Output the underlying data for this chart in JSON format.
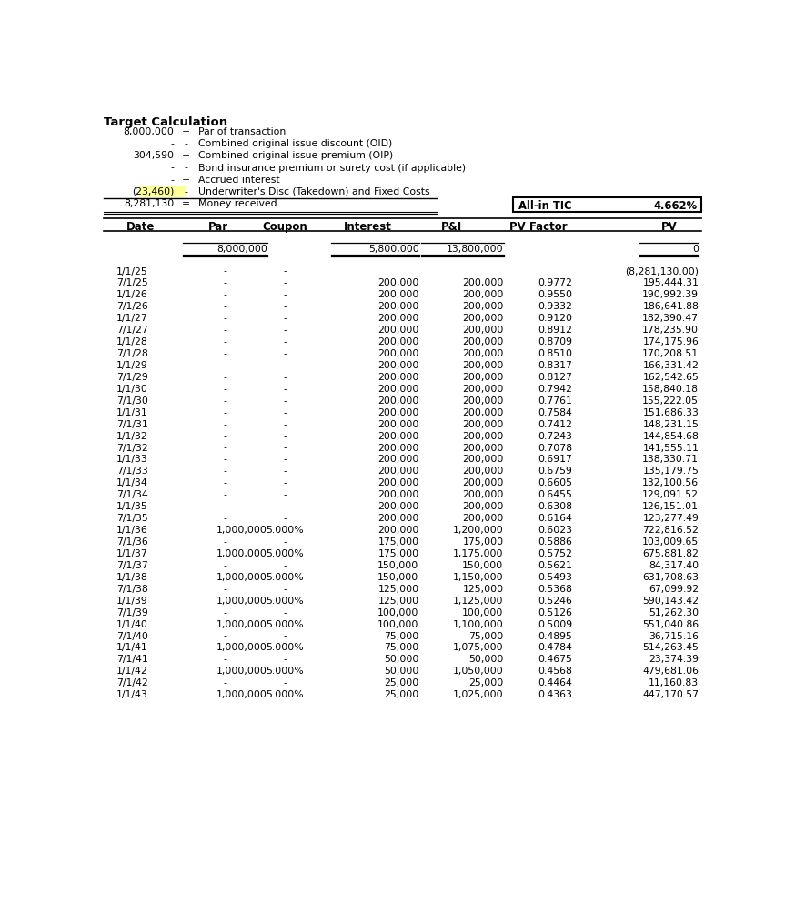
{
  "title": "Target Calculation",
  "header_lines": [
    [
      "8,000,000",
      "+",
      "Par of transaction"
    ],
    [
      "-",
      "-",
      "Combined original issue discount (OID)"
    ],
    [
      "304,590",
      "+",
      "Combined original issue premium (OIP)"
    ],
    [
      "-",
      "-",
      "Bond insurance premium or surety cost (if applicable)"
    ],
    [
      "-",
      "+",
      "Accrued interest"
    ],
    [
      "(23,460)",
      "-",
      "Underwriter's Disc (Takedown) and Fixed Costs"
    ],
    [
      "8,281,130",
      "=",
      "Money received"
    ]
  ],
  "highlight_row": 5,
  "tic_label": "All-in TIC",
  "tic_value": "4.662%",
  "col_headers": [
    "Date",
    "Par",
    "Coupon",
    "Interest",
    "P&I",
    "PV Factor",
    "PV"
  ],
  "totals_row": [
    "",
    "8,000,000",
    "",
    "5,800,000",
    "13,800,000",
    "",
    "0"
  ],
  "table_rows": [
    [
      "1/1/25",
      "-",
      "-",
      "",
      "",
      "",
      "(8,281,130.00)"
    ],
    [
      "7/1/25",
      "-",
      "-",
      "200,000",
      "200,000",
      "0.9772",
      "195,444.31"
    ],
    [
      "1/1/26",
      "-",
      "-",
      "200,000",
      "200,000",
      "0.9550",
      "190,992.39"
    ],
    [
      "7/1/26",
      "-",
      "-",
      "200,000",
      "200,000",
      "0.9332",
      "186,641.88"
    ],
    [
      "1/1/27",
      "-",
      "-",
      "200,000",
      "200,000",
      "0.9120",
      "182,390.47"
    ],
    [
      "7/1/27",
      "-",
      "-",
      "200,000",
      "200,000",
      "0.8912",
      "178,235.90"
    ],
    [
      "1/1/28",
      "-",
      "-",
      "200,000",
      "200,000",
      "0.8709",
      "174,175.96"
    ],
    [
      "7/1/28",
      "-",
      "-",
      "200,000",
      "200,000",
      "0.8510",
      "170,208.51"
    ],
    [
      "1/1/29",
      "-",
      "-",
      "200,000",
      "200,000",
      "0.8317",
      "166,331.42"
    ],
    [
      "7/1/29",
      "-",
      "-",
      "200,000",
      "200,000",
      "0.8127",
      "162,542.65"
    ],
    [
      "1/1/30",
      "-",
      "-",
      "200,000",
      "200,000",
      "0.7942",
      "158,840.18"
    ],
    [
      "7/1/30",
      "-",
      "-",
      "200,000",
      "200,000",
      "0.7761",
      "155,222.05"
    ],
    [
      "1/1/31",
      "-",
      "-",
      "200,000",
      "200,000",
      "0.7584",
      "151,686.33"
    ],
    [
      "7/1/31",
      "-",
      "-",
      "200,000",
      "200,000",
      "0.7412",
      "148,231.15"
    ],
    [
      "1/1/32",
      "-",
      "-",
      "200,000",
      "200,000",
      "0.7243",
      "144,854.68"
    ],
    [
      "7/1/32",
      "-",
      "-",
      "200,000",
      "200,000",
      "0.7078",
      "141,555.11"
    ],
    [
      "1/1/33",
      "-",
      "-",
      "200,000",
      "200,000",
      "0.6917",
      "138,330.71"
    ],
    [
      "7/1/33",
      "-",
      "-",
      "200,000",
      "200,000",
      "0.6759",
      "135,179.75"
    ],
    [
      "1/1/34",
      "-",
      "-",
      "200,000",
      "200,000",
      "0.6605",
      "132,100.56"
    ],
    [
      "7/1/34",
      "-",
      "-",
      "200,000",
      "200,000",
      "0.6455",
      "129,091.52"
    ],
    [
      "1/1/35",
      "-",
      "-",
      "200,000",
      "200,000",
      "0.6308",
      "126,151.01"
    ],
    [
      "7/1/35",
      "-",
      "-",
      "200,000",
      "200,000",
      "0.6164",
      "123,277.49"
    ],
    [
      "1/1/36",
      "1,000,000",
      "5.000%",
      "200,000",
      "1,200,000",
      "0.6023",
      "722,816.52"
    ],
    [
      "7/1/36",
      "-",
      "-",
      "175,000",
      "175,000",
      "0.5886",
      "103,009.65"
    ],
    [
      "1/1/37",
      "1,000,000",
      "5.000%",
      "175,000",
      "1,175,000",
      "0.5752",
      "675,881.82"
    ],
    [
      "7/1/37",
      "-",
      "-",
      "150,000",
      "150,000",
      "0.5621",
      "84,317.40"
    ],
    [
      "1/1/38",
      "1,000,000",
      "5.000%",
      "150,000",
      "1,150,000",
      "0.5493",
      "631,708.63"
    ],
    [
      "7/1/38",
      "-",
      "-",
      "125,000",
      "125,000",
      "0.5368",
      "67,099.92"
    ],
    [
      "1/1/39",
      "1,000,000",
      "5.000%",
      "125,000",
      "1,125,000",
      "0.5246",
      "590,143.42"
    ],
    [
      "7/1/39",
      "-",
      "-",
      "100,000",
      "100,000",
      "0.5126",
      "51,262.30"
    ],
    [
      "1/1/40",
      "1,000,000",
      "5.000%",
      "100,000",
      "1,100,000",
      "0.5009",
      "551,040.86"
    ],
    [
      "7/1/40",
      "-",
      "-",
      "75,000",
      "75,000",
      "0.4895",
      "36,715.16"
    ],
    [
      "1/1/41",
      "1,000,000",
      "5.000%",
      "75,000",
      "1,075,000",
      "0.4784",
      "514,263.45"
    ],
    [
      "7/1/41",
      "-",
      "-",
      "50,000",
      "50,000",
      "0.4675",
      "23,374.39"
    ],
    [
      "1/1/42",
      "1,000,000",
      "5.000%",
      "50,000",
      "1,050,000",
      "0.4568",
      "479,681.06"
    ],
    [
      "7/1/42",
      "-",
      "-",
      "25,000",
      "25,000",
      "0.4464",
      "11,160.83"
    ],
    [
      "1/1/43",
      "1,000,000",
      "5.000%",
      "25,000",
      "1,025,000",
      "0.4363",
      "447,170.57"
    ]
  ],
  "bg_color": "#ffffff",
  "highlight_color": "#ffff99",
  "text_color": "#000000",
  "font_size": 7.8,
  "header_font_size": 8.5,
  "title_font_size": 9.5
}
